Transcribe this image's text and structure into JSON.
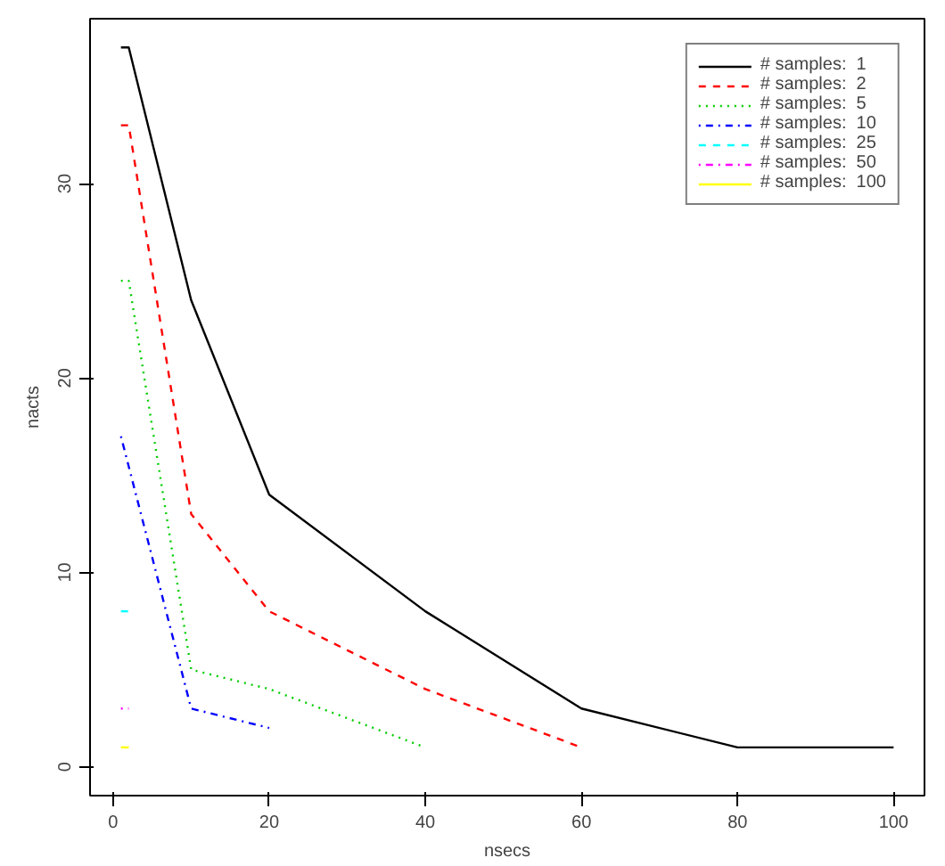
{
  "chart_data": {
    "type": "line",
    "xlabel": "nsecs",
    "ylabel": "nacts",
    "xlim": [
      -2.96,
      103.96
    ],
    "ylim": [
      -1.48,
      38.48
    ],
    "xticks": [
      0,
      20,
      40,
      60,
      80,
      100
    ],
    "yticks": [
      0,
      10,
      20,
      30
    ],
    "grid": false,
    "legend": "top right",
    "marker": "none",
    "series": [
      {
        "name": "# samples:  1",
        "color": "#000000",
        "line_style": "solid",
        "x": [
          1,
          2,
          10,
          20,
          40,
          60,
          80,
          100
        ],
        "values": [
          37,
          37,
          24,
          14,
          8,
          3,
          1,
          1
        ]
      },
      {
        "name": "# samples:  2",
        "color": "#ff0000",
        "line_style": "dashed",
        "x": [
          1,
          2,
          10,
          20,
          40,
          60
        ],
        "values": [
          33,
          33,
          13,
          8,
          4,
          1
        ]
      },
      {
        "name": "# samples:  5",
        "color": "#00cd00",
        "line_style": "dotted",
        "x": [
          1,
          2,
          10,
          20,
          40
        ],
        "values": [
          25,
          25,
          5,
          4,
          1
        ]
      },
      {
        "name": "# samples:  10",
        "color": "#0000ff",
        "line_style": "dashdot",
        "x": [
          1,
          10,
          20
        ],
        "values": [
          17,
          3,
          2
        ]
      },
      {
        "name": "# samples:  25",
        "color": "#00ffff",
        "line_style": "dashed",
        "x": [
          1,
          2
        ],
        "values": [
          8,
          8
        ]
      },
      {
        "name": "# samples:  50",
        "color": "#ff00ff",
        "line_style": "dashdot",
        "x": [
          1,
          2
        ],
        "values": [
          3,
          3
        ]
      },
      {
        "name": "# samples:  100",
        "color": "#ffff00",
        "line_style": "solid",
        "x": [
          1,
          2
        ],
        "values": [
          1,
          1
        ]
      }
    ]
  }
}
